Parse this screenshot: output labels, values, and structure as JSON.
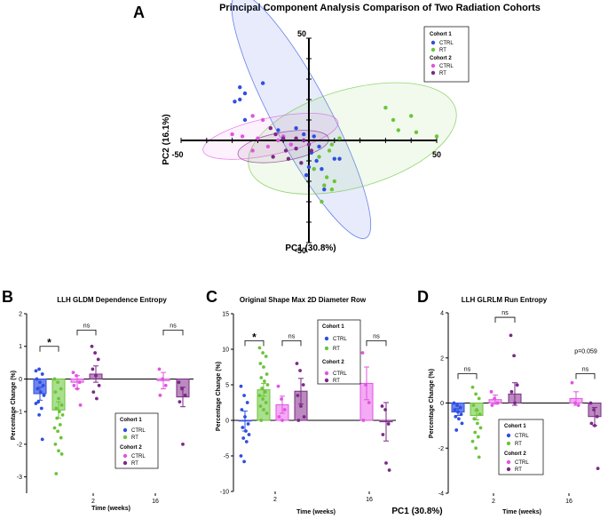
{
  "colors": {
    "c1_ctrl": "#2f4fe0",
    "c1_rt": "#6cc43a",
    "c2_ctrl": "#e055e0",
    "c2_rt": "#7a2a86",
    "c1_ctrl_fill": "#3d5ce6",
    "c1_rt_fill": "#8dd46a",
    "c2_ctrl_fill": "#f08ef0",
    "c2_rt_fill": "#a463a8"
  },
  "panels": {
    "A": {
      "letter": "A",
      "title": "Principal Component Analysis Comparison of Two Radiation Cohorts",
      "xlabel": "PC1 (30.8%)",
      "ylabel": "PC2 (16.1%)"
    },
    "B": {
      "letter": "B",
      "title": "LLH GLDM Dependence Entropy",
      "xlabel": "Time (weeks)",
      "ylabel": "Percentage Change (%)"
    },
    "C": {
      "letter": "C",
      "title": "Original Shape Max 2D Diameter Row",
      "xlabel": "Time (weeks)",
      "ylabel": "Percentage Change (%)"
    },
    "D": {
      "letter": "D",
      "title": "LLH GLRLM Run Entropy",
      "xlabel": "Time (weeks)",
      "ylabel": "Percentage Change (%)"
    }
  },
  "legend": {
    "cohort1": "Cohort 1",
    "cohort2": "Cohort 2",
    "ctrl": "CTRL",
    "rt": "RT"
  },
  "stray_label": "PC1 (30.8%)",
  "chart_data": [
    {
      "type": "scatter",
      "panel": "A",
      "title": "Principal Component Analysis Comparison of Two Radiation Cohorts",
      "xlabel": "PC1 (30.8%)",
      "ylabel": "PC2 (16.1%)",
      "xlim": [
        -50,
        50
      ],
      "ylim": [
        -50,
        50
      ],
      "x_ticks": [
        "-50",
        "50"
      ],
      "y_ticks": [
        "50",
        "-50"
      ],
      "legend_position": "top-right",
      "series": [
        {
          "name": "CTRL",
          "cohort": "Cohort 1",
          "points": [
            [
              -27,
              26
            ],
            [
              -25,
              23
            ],
            [
              -27,
              20
            ],
            [
              -29,
              19
            ],
            [
              -18,
              28
            ],
            [
              -25,
              10
            ],
            [
              -12,
              5
            ],
            [
              -5,
              6
            ],
            [
              -2,
              3
            ],
            [
              2,
              2
            ],
            [
              4,
              -3
            ],
            [
              1,
              -6
            ],
            [
              3,
              -10
            ],
            [
              5,
              -14
            ],
            [
              -1,
              -17
            ],
            [
              10,
              -9
            ],
            [
              12,
              -9
            ],
            [
              6,
              -24
            ],
            [
              0,
              -13
            ]
          ]
        },
        {
          "name": "RT",
          "cohort": "Cohort 1",
          "points": [
            [
              30,
              16
            ],
            [
              33,
              10
            ],
            [
              35,
              5
            ],
            [
              40,
              12
            ],
            [
              42,
              4
            ],
            [
              50,
              2
            ],
            [
              12,
              1
            ],
            [
              9,
              -2
            ],
            [
              4,
              -8
            ],
            [
              7,
              -18
            ],
            [
              6,
              -22
            ],
            [
              9,
              -24
            ],
            [
              10,
              -20
            ],
            [
              5,
              -30
            ],
            [
              8,
              -5
            ],
            [
              2,
              -14
            ]
          ]
        },
        {
          "name": "CTRL",
          "cohort": "Cohort 2",
          "points": [
            [
              -22,
              12
            ],
            [
              -18,
              10
            ],
            [
              -30,
              3
            ],
            [
              -26,
              2
            ],
            [
              -20,
              1
            ],
            [
              -12,
              0
            ],
            [
              -7,
              -2
            ],
            [
              -16,
              -3
            ],
            [
              -22,
              -5
            ],
            [
              -10,
              2
            ]
          ]
        },
        {
          "name": "RT",
          "cohort": "Cohort 2",
          "points": [
            [
              -15,
              6
            ],
            [
              -13,
              3
            ],
            [
              -10,
              1
            ],
            [
              -5,
              1
            ],
            [
              -2,
              0
            ],
            [
              -9,
              -5
            ],
            [
              -5,
              -4
            ],
            [
              0,
              -2
            ],
            [
              -8,
              -9
            ],
            [
              -3,
              -11
            ],
            [
              1,
              -5
            ],
            [
              -14,
              -8
            ]
          ]
        }
      ]
    },
    {
      "type": "bar",
      "panel": "B",
      "title": "LLH GLDM Dependence Entropy",
      "xlabel": "Time (weeks)",
      "ylabel": "Percentage Change (%)",
      "ylim": [
        -3.5,
        2
      ],
      "y_ticks": [
        -3,
        -2,
        -1,
        0,
        1,
        2
      ],
      "categories": [
        "2",
        "16"
      ],
      "legend_position": "bottom-right",
      "series": [
        {
          "name": "CTRL",
          "cohort": "Cohort 1",
          "category": "2",
          "mean": -0.45,
          "sem": 0.2,
          "points": [
            0.25,
            0.3,
            0.15,
            0.0,
            -0.1,
            -0.2,
            -0.3,
            -0.4,
            -0.5,
            -0.7,
            -0.9,
            -0.75,
            -1.1,
            -1.85
          ]
        },
        {
          "name": "RT",
          "cohort": "Cohort 1",
          "category": "2",
          "mean": -0.95,
          "sem": 0.25,
          "points": [
            0.0,
            -0.1,
            -0.3,
            -0.4,
            -0.6,
            -0.8,
            -0.9,
            -1.0,
            -1.1,
            -1.2,
            -1.4,
            -1.5,
            -1.6,
            -1.8,
            -2.0,
            -2.2,
            -2.3,
            -2.9
          ]
        },
        {
          "name": "CTRL",
          "cohort": "Cohort 2",
          "category": "2",
          "mean": -0.1,
          "sem": 0.2,
          "points": [
            0.2,
            0.1,
            -0.1,
            -0.2,
            -0.3,
            -0.8
          ]
        },
        {
          "name": "RT",
          "cohort": "Cohort 2",
          "category": "2",
          "mean": 0.15,
          "sem": 0.25,
          "points": [
            1.0,
            0.8,
            0.6,
            0.3,
            0.1,
            -0.2,
            -0.4,
            -0.6
          ]
        },
        {
          "name": "CTRL",
          "cohort": "Cohort 2",
          "category": "16",
          "mean": -0.05,
          "sem": 0.25,
          "points": [
            0.3,
            0.0,
            -0.2,
            -0.5
          ]
        },
        {
          "name": "RT",
          "cohort": "Cohort 2",
          "category": "16",
          "mean": -0.55,
          "sem": 0.3,
          "points": [
            -0.1,
            -0.3,
            -0.5,
            -0.7,
            -2.0
          ]
        }
      ],
      "annotations": [
        {
          "text": "*",
          "between": [
            "Cohort 1 CTRL 2",
            "Cohort 1 RT 2"
          ]
        },
        {
          "text": "ns",
          "between": [
            "Cohort 2 CTRL 2",
            "Cohort 2 RT 2"
          ]
        },
        {
          "text": "ns",
          "between": [
            "Cohort 2 CTRL 16",
            "Cohort 2 RT 16"
          ]
        }
      ]
    },
    {
      "type": "bar",
      "panel": "C",
      "title": "Original Shape Max 2D Diameter Row",
      "xlabel": "Time (weeks)",
      "ylabel": "Percentage Change (%)",
      "ylim": [
        -10,
        15
      ],
      "y_ticks": [
        -10,
        -5,
        0,
        5,
        10,
        15
      ],
      "categories": [
        "2",
        "16"
      ],
      "legend_position": "top-right",
      "series": [
        {
          "name": "CTRL",
          "cohort": "Cohort 1",
          "category": "2",
          "mean": -0.1,
          "sem": 1.4,
          "points": [
            4.8,
            3.5,
            2.5,
            1.5,
            0.5,
            -0.5,
            -1.0,
            -1.5,
            -2.0,
            -2.5,
            -3.0,
            -5.0,
            -5.8
          ]
        },
        {
          "name": "RT",
          "cohort": "Cohort 1",
          "category": "2",
          "mean": 4.3,
          "sem": 0.9,
          "points": [
            10.2,
            9.5,
            9.0,
            8.0,
            7.5,
            6.5,
            6.0,
            5.5,
            5.0,
            4.5,
            4.0,
            3.5,
            3.0,
            2.5,
            2.0,
            1.5,
            1.0,
            0.0
          ]
        },
        {
          "name": "CTRL",
          "cohort": "Cohort 2",
          "category": "2",
          "mean": 2.2,
          "sem": 1.2,
          "points": [
            4.8,
            3.0,
            1.5,
            0.5,
            0.0
          ]
        },
        {
          "name": "RT",
          "cohort": "Cohort 2",
          "category": "2",
          "mean": 4.1,
          "sem": 1.8,
          "points": [
            8.0,
            7.0,
            5.0,
            3.5,
            2.0,
            0.5,
            0.0
          ]
        },
        {
          "name": "CTRL",
          "cohort": "Cohort 2",
          "category": "16",
          "mean": 5.2,
          "sem": 2.3,
          "points": [
            9.5,
            5.0,
            2.5,
            0.0
          ]
        },
        {
          "name": "RT",
          "cohort": "Cohort 2",
          "category": "16",
          "mean": -0.2,
          "sem": 2.7,
          "points": [
            2.0,
            1.5,
            -0.5,
            -2.0,
            -6.0,
            -7.0
          ]
        }
      ],
      "annotations": [
        {
          "text": "*",
          "between": [
            "Cohort 1 CTRL 2",
            "Cohort 1 RT 2"
          ]
        },
        {
          "text": "ns",
          "between": [
            "Cohort 2 CTRL 2",
            "Cohort 2 RT 2"
          ]
        },
        {
          "text": "ns",
          "between": [
            "Cohort 2 CTRL 16",
            "Cohort 2 RT 16"
          ]
        }
      ]
    },
    {
      "type": "bar",
      "panel": "D",
      "title": "LLH GLRLM Run Entropy",
      "xlabel": "Time (weeks)",
      "ylabel": "Percentage Change (%)",
      "ylim": [
        -4,
        4
      ],
      "y_ticks": [
        -4,
        -2,
        0,
        2,
        4
      ],
      "categories": [
        "2",
        "16"
      ],
      "legend_position": "bottom-right",
      "series": [
        {
          "name": "CTRL",
          "cohort": "Cohort 1",
          "category": "2",
          "mean": -0.4,
          "sem": 0.15,
          "points": [
            0.0,
            -0.1,
            -0.2,
            -0.3,
            -0.4,
            -0.5,
            -0.6,
            -0.7,
            -0.9,
            -1.2
          ]
        },
        {
          "name": "RT",
          "cohort": "Cohort 1",
          "category": "2",
          "mean": -0.55,
          "sem": 0.2,
          "points": [
            0.7,
            0.4,
            0.2,
            -0.1,
            -0.3,
            -0.5,
            -0.7,
            -0.9,
            -1.1,
            -1.3,
            -1.5,
            -1.7,
            -2.0,
            -2.4
          ]
        },
        {
          "name": "CTRL",
          "cohort": "Cohort 2",
          "category": "2",
          "mean": 0.15,
          "sem": 0.2,
          "points": [
            0.5,
            0.2,
            0.0,
            -0.1
          ]
        },
        {
          "name": "RT",
          "cohort": "Cohort 2",
          "category": "2",
          "mean": 0.4,
          "sem": 0.5,
          "points": [
            3.0,
            2.1,
            0.8,
            0.5,
            0.0,
            -0.8,
            -1.2
          ]
        },
        {
          "name": "CTRL",
          "cohort": "Cohort 2",
          "category": "16",
          "mean": 0.2,
          "sem": 0.3,
          "points": [
            0.9,
            0.0,
            -0.1
          ]
        },
        {
          "name": "RT",
          "cohort": "Cohort 2",
          "category": "16",
          "mean": -0.6,
          "sem": 0.4,
          "points": [
            0.0,
            -0.3,
            -0.6,
            -0.9,
            -1.0,
            -2.9
          ]
        }
      ],
      "annotations": [
        {
          "text": "ns",
          "between": [
            "Cohort 1 CTRL 2",
            "Cohort 1 RT 2"
          ]
        },
        {
          "text": "ns",
          "between": [
            "Cohort 2 CTRL 2",
            "Cohort 2 RT 2"
          ]
        },
        {
          "text": "ns",
          "between": [
            "Cohort 2 CTRL 16",
            "Cohort 2 RT 16"
          ]
        },
        {
          "text": "p=0.059",
          "between": [
            "Cohort 2 CTRL 16",
            "Cohort 2 RT 16"
          ]
        }
      ]
    }
  ]
}
